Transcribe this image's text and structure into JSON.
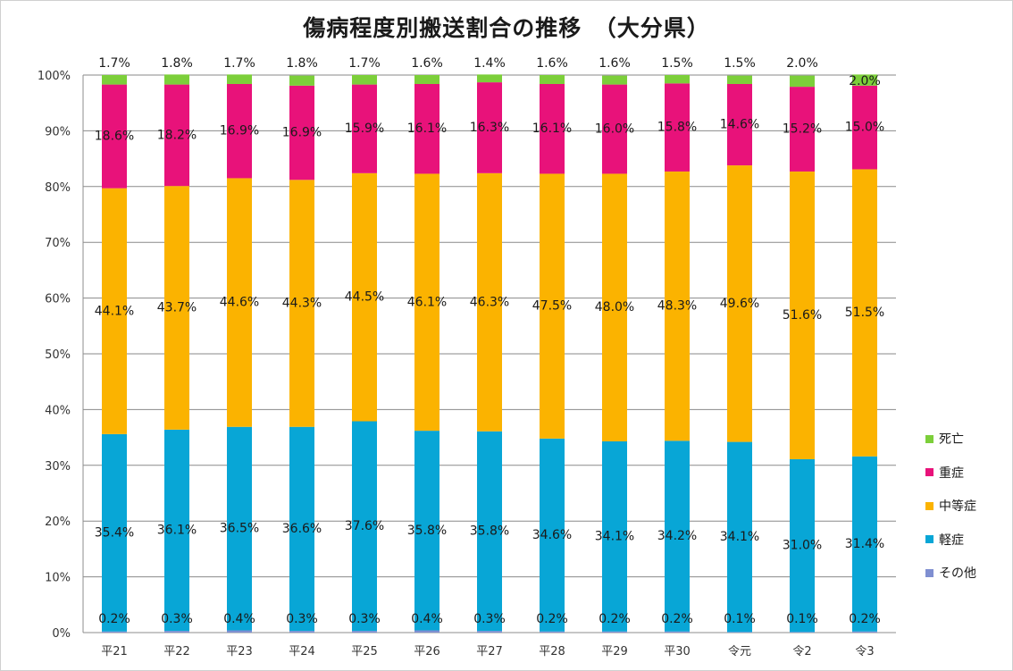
{
  "title": "傷病程度別搬送割合の推移　（大分県）",
  "colors": {
    "その他": "#7f8fd1",
    "軽症": "#08a6d6",
    "中等症": "#fbb300",
    "重症": "#e8127a",
    "死亡": "#7ccf3a"
  },
  "chart_data": {
    "type": "bar",
    "stacked": true,
    "percent": true,
    "title": "傷病程度別搬送割合の推移　（大分県）",
    "categories": [
      "平21",
      "平22",
      "平23",
      "平24",
      "平25",
      "平26",
      "平27",
      "平28",
      "平29",
      "平30",
      "令元",
      "令2",
      "令3"
    ],
    "ylim": [
      0,
      100
    ],
    "yticks": [
      "0%",
      "10%",
      "20%",
      "30%",
      "40%",
      "50%",
      "60%",
      "70%",
      "80%",
      "90%",
      "100%"
    ],
    "grid": true,
    "legend_position": "right",
    "series": [
      {
        "name": "その他",
        "values": [
          0.2,
          0.3,
          0.4,
          0.3,
          0.3,
          0.4,
          0.3,
          0.2,
          0.2,
          0.2,
          0.1,
          0.1,
          0.2
        ],
        "labels": [
          "0.2%",
          "0.3%",
          "0.4%",
          "0.3%",
          "0.3%",
          "0.4%",
          "0.3%",
          "0.2%",
          "0.2%",
          "0.2%",
          "0.1%",
          "0.1%",
          "0.2%"
        ]
      },
      {
        "name": "軽症",
        "values": [
          35.4,
          36.1,
          36.5,
          36.6,
          37.6,
          35.8,
          35.8,
          34.6,
          34.1,
          34.2,
          34.1,
          31.0,
          31.4
        ],
        "labels": [
          "35.4%",
          "36.1%",
          "36.5%",
          "36.6%",
          "37.6%",
          "35.8%",
          "35.8%",
          "34.6%",
          "34.1%",
          "34.2%",
          "34.1%",
          "31.0%",
          "31.4%"
        ]
      },
      {
        "name": "中等症",
        "values": [
          44.1,
          43.7,
          44.6,
          44.3,
          44.5,
          46.1,
          46.3,
          47.5,
          48.0,
          48.3,
          49.6,
          51.6,
          51.5
        ],
        "labels": [
          "44.1%",
          "43.7%",
          "44.6%",
          "44.3%",
          "44.5%",
          "46.1%",
          "46.3%",
          "47.5%",
          "48.0%",
          "48.3%",
          "49.6%",
          "51.6%",
          "51.5%"
        ]
      },
      {
        "name": "重症",
        "values": [
          18.6,
          18.2,
          16.9,
          16.9,
          15.9,
          16.1,
          16.3,
          16.1,
          16.0,
          15.8,
          14.6,
          15.2,
          15.0
        ],
        "labels": [
          "18.6%",
          "18.2%",
          "16.9%",
          "16.9%",
          "15.9%",
          "16.1%",
          "16.3%",
          "16.1%",
          "16.0%",
          "15.8%",
          "14.6%",
          "15.2%",
          "15.0%"
        ]
      },
      {
        "name": "死亡",
        "values": [
          1.7,
          1.8,
          1.7,
          1.8,
          1.7,
          1.6,
          1.4,
          1.6,
          1.6,
          1.5,
          1.5,
          2.0,
          2.0
        ],
        "labels": [
          "1.7%",
          "1.8%",
          "1.7%",
          "1.8%",
          "1.7%",
          "1.6%",
          "1.4%",
          "1.6%",
          "1.6%",
          "1.5%",
          "1.5%",
          "2.0%",
          "2.0%"
        ]
      }
    ],
    "legend": [
      "死亡",
      "重症",
      "中等症",
      "軽症",
      "その他"
    ]
  }
}
